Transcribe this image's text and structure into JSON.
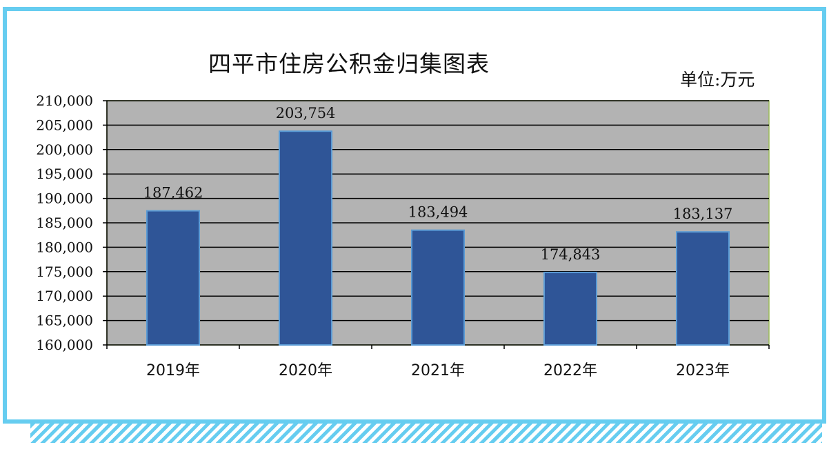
{
  "chart_data": {
    "type": "bar",
    "title": "四平市住房公积金归集图表",
    "unit_label": "单位:万元",
    "categories": [
      "2019年",
      "2020年",
      "2021年",
      "2022年",
      "2023年"
    ],
    "values": [
      187462,
      203754,
      183494,
      174843,
      183137
    ],
    "data_labels": [
      "187,462",
      "203,754",
      "183,494",
      "174,843",
      "183,137"
    ],
    "ylim": [
      160000,
      210000
    ],
    "yticks": [
      160000,
      165000,
      170000,
      175000,
      180000,
      185000,
      190000,
      195000,
      200000,
      205000,
      210000
    ],
    "ytick_labels": [
      "160,000",
      "165,000",
      "170,000",
      "175,000",
      "180,000",
      "185,000",
      "190,000",
      "195,000",
      "200,000",
      "205,000",
      "210,000"
    ],
    "grid": true,
    "colors": {
      "bar": "#2f5597",
      "bar_edge": "#5b9bd5",
      "plot_background": "#b3b3b3",
      "plot_border": "#9bbb59",
      "frame": "#66cdf0"
    }
  }
}
